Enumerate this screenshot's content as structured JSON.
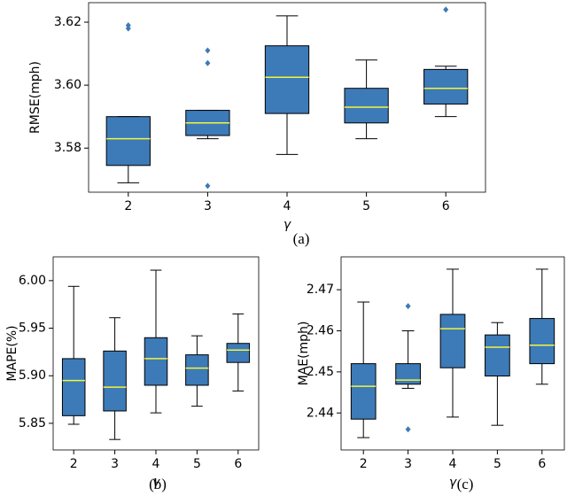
{
  "chart_data": [
    {
      "type": "box",
      "ylabel": "RMSE(mph)",
      "xlabel": "γ",
      "caption": "(a)",
      "categories": [
        "2",
        "3",
        "4",
        "5",
        "6"
      ],
      "box_color": "#3d7ab8",
      "median_color": "#f5f53a",
      "flier_color": "#3d7ab8",
      "ylim": [
        3.566,
        3.6262
      ],
      "yticks": [
        3.58,
        {
          "value": 3.6,
          "label": "3.60"
        },
        3.62
      ],
      "boxes": [
        {
          "whislo": 3.569,
          "q1": 3.5745,
          "med": 3.583,
          "q3": 3.59,
          "whishi": 3.59,
          "fliers": [
            3.619,
            3.618
          ]
        },
        {
          "whislo": 3.583,
          "q1": 3.584,
          "med": 3.588,
          "q3": 3.592,
          "whishi": 3.592,
          "fliers": [
            3.611,
            3.607,
            3.568
          ]
        },
        {
          "whislo": 3.578,
          "q1": 3.591,
          "med": 3.6025,
          "q3": 3.6125,
          "whishi": 3.622,
          "fliers": []
        },
        {
          "whislo": 3.583,
          "q1": 3.588,
          "med": 3.593,
          "q3": 3.599,
          "whishi": 3.608,
          "fliers": []
        },
        {
          "whislo": 3.59,
          "q1": 3.594,
          "med": 3.599,
          "q3": 3.605,
          "whishi": 3.606,
          "fliers": [
            3.624
          ]
        }
      ]
    },
    {
      "type": "box",
      "ylabel": "MAPE(%)",
      "xlabel": "γ",
      "caption": "(b)",
      "categories": [
        "2",
        "3",
        "4",
        "5",
        "6"
      ],
      "box_color": "#3d7ab8",
      "median_color": "#f5f53a",
      "flier_color": "#3d7ab8",
      "ylim": [
        5.822,
        6.025
      ],
      "yticks": [
        5.85,
        {
          "value": 5.9,
          "label": "5.90"
        },
        5.95,
        {
          "value": 6.0,
          "label": "6.00"
        }
      ],
      "boxes": [
        {
          "whislo": 5.849,
          "q1": 5.858,
          "med": 5.895,
          "q3": 5.918,
          "whishi": 5.994,
          "fliers": []
        },
        {
          "whislo": 5.833,
          "q1": 5.863,
          "med": 5.888,
          "q3": 5.926,
          "whishi": 5.961,
          "fliers": []
        },
        {
          "whislo": 5.861,
          "q1": 5.89,
          "med": 5.918,
          "q3": 5.94,
          "whishi": 6.011,
          "fliers": []
        },
        {
          "whislo": 5.868,
          "q1": 5.89,
          "med": 5.908,
          "q3": 5.922,
          "whishi": 5.942,
          "fliers": []
        },
        {
          "whislo": 5.884,
          "q1": 5.914,
          "med": 5.927,
          "q3": 5.934,
          "whishi": 5.965,
          "fliers": []
        }
      ]
    },
    {
      "type": "box",
      "ylabel": "MAE(mph)",
      "xlabel": "γ",
      "caption": "(c)",
      "categories": [
        "2",
        "3",
        "4",
        "5",
        "6"
      ],
      "box_color": "#3d7ab8",
      "median_color": "#f5f53a",
      "flier_color": "#3d7ab8",
      "ylim": [
        2.431,
        2.478
      ],
      "yticks": [
        2.44,
        2.45,
        2.46,
        2.47
      ],
      "boxes": [
        {
          "whislo": 2.434,
          "q1": 2.4385,
          "med": 2.4465,
          "q3": 2.452,
          "whishi": 2.467,
          "fliers": []
        },
        {
          "whislo": 2.446,
          "q1": 2.447,
          "med": 2.448,
          "q3": 2.452,
          "whishi": 2.46,
          "fliers": [
            2.466,
            2.436
          ]
        },
        {
          "whislo": 2.439,
          "q1": 2.451,
          "med": 2.4605,
          "q3": 2.464,
          "whishi": 2.475,
          "fliers": []
        },
        {
          "whislo": 2.437,
          "q1": 2.449,
          "med": 2.456,
          "q3": 2.459,
          "whishi": 2.462,
          "fliers": []
        },
        {
          "whislo": 2.447,
          "q1": 2.452,
          "med": 2.4565,
          "q3": 2.463,
          "whishi": 2.475,
          "fliers": []
        }
      ]
    }
  ]
}
